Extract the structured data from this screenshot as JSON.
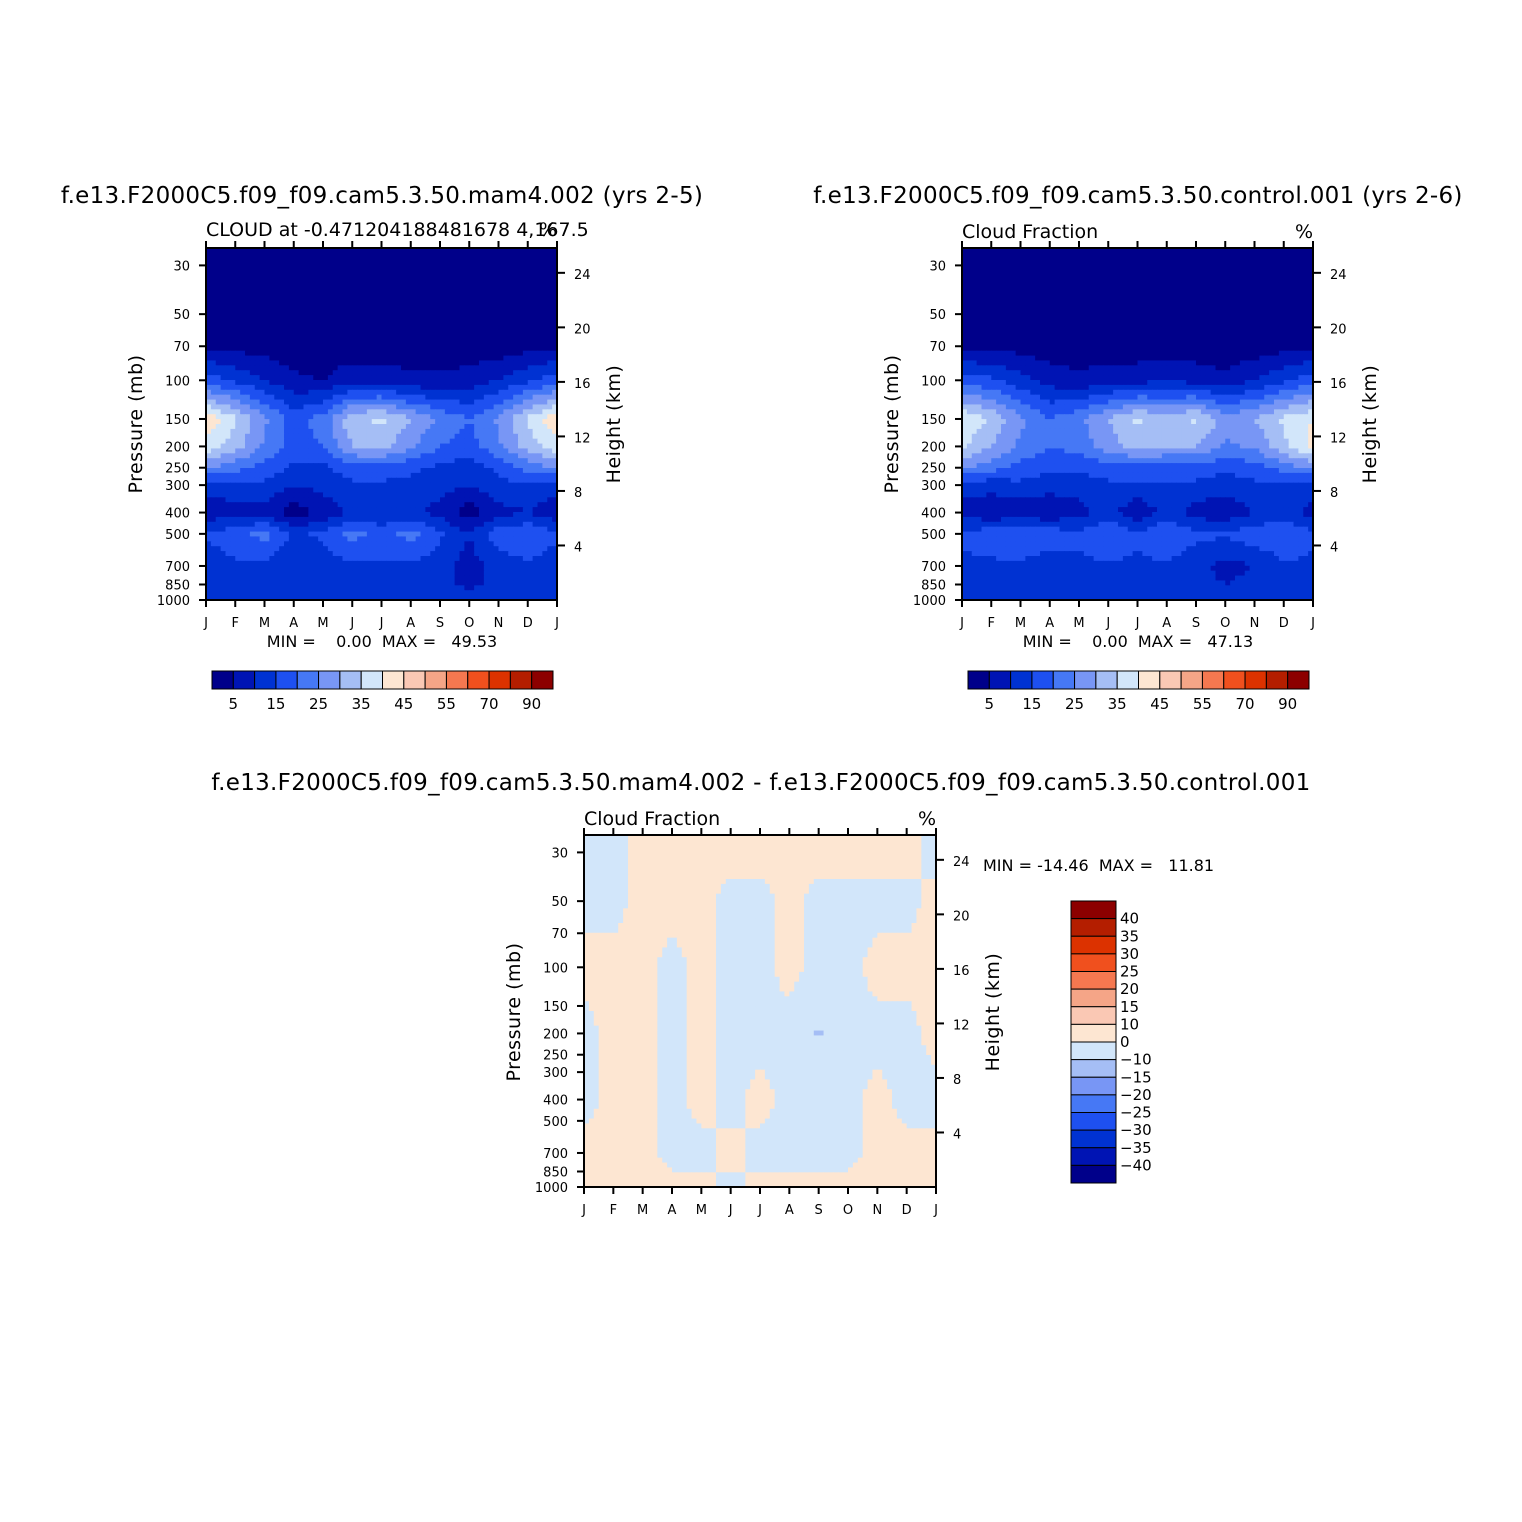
{
  "chart_data": [
    {
      "type": "heatmap",
      "title": "f.e13.F2000C5.f09_f09.cam5.3.50.mam4.002 (yrs 2-5)",
      "subtitle_left": "CLOUD at -0.471204188481678 4,167.5",
      "subtitle_right": "%",
      "xlabel": "",
      "ylabel": "Pressure (mb)",
      "ylabel_right": "Height (km)",
      "x_ticks": [
        "J",
        "F",
        "M",
        "A",
        "M",
        "J",
        "J",
        "A",
        "S",
        "O",
        "N",
        "D",
        "J"
      ],
      "y_ticks": [
        30,
        50,
        70,
        100,
        150,
        200,
        250,
        300,
        400,
        500,
        700,
        850,
        1000
      ],
      "y_right_ticks": [
        24,
        20,
        16,
        12,
        8,
        4
      ],
      "y_scale": "log",
      "ylim": [
        1000,
        25
      ],
      "min_max_text": "MIN =    0.00  MAX =   49.53",
      "colorbar_labels": [
        "5",
        "15",
        "25",
        "35",
        "45",
        "55",
        "70",
        "90"
      ],
      "colorbar_colors": [
        "#00008a",
        "#0014b4",
        "#0032d2",
        "#1e50f0",
        "#4678f5",
        "#7896f5",
        "#a5bef5",
        "#d2e6fa",
        "#fde6d2",
        "#fac8b4",
        "#f5a587",
        "#f57850",
        "#f0501e",
        "#dc3200",
        "#b41e00",
        "#8c0000"
      ],
      "bands": [
        {
          "y": 30,
          "values": [
            2,
            2,
            2,
            2,
            2,
            2,
            2,
            2,
            2,
            2,
            2,
            2,
            2
          ]
        },
        {
          "y": 70,
          "values": [
            4,
            3,
            3,
            2,
            2,
            2,
            2,
            2,
            2,
            2,
            2,
            3,
            4
          ]
        },
        {
          "y": 100,
          "values": [
            18,
            14,
            10,
            6,
            5,
            8,
            8,
            6,
            6,
            7,
            10,
            14,
            18
          ]
        },
        {
          "y": 150,
          "values": [
            44,
            36,
            26,
            18,
            22,
            34,
            36,
            30,
            24,
            20,
            26,
            36,
            44
          ]
        },
        {
          "y": 200,
          "values": [
            38,
            32,
            24,
            18,
            20,
            30,
            32,
            26,
            20,
            18,
            24,
            32,
            38
          ]
        },
        {
          "y": 250,
          "values": [
            26,
            22,
            18,
            14,
            14,
            18,
            18,
            16,
            14,
            12,
            16,
            22,
            26
          ]
        },
        {
          "y": 300,
          "values": [
            12,
            14,
            14,
            10,
            12,
            14,
            14,
            14,
            12,
            10,
            14,
            14,
            12
          ]
        },
        {
          "y": 400,
          "values": [
            6,
            8,
            8,
            2,
            6,
            11,
            10,
            11,
            8,
            2,
            8,
            10,
            6
          ]
        },
        {
          "y": 500,
          "values": [
            16,
            18,
            22,
            14,
            16,
            22,
            18,
            22,
            16,
            10,
            18,
            20,
            16
          ]
        },
        {
          "y": 700,
          "values": [
            12,
            14,
            14,
            10,
            12,
            14,
            14,
            14,
            12,
            8,
            12,
            14,
            12
          ]
        },
        {
          "y": 850,
          "values": [
            12,
            14,
            14,
            10,
            12,
            14,
            14,
            14,
            12,
            8,
            12,
            14,
            12
          ]
        },
        {
          "y": 1000,
          "values": [
            14,
            14,
            14,
            14,
            14,
            14,
            14,
            14,
            14,
            14,
            14,
            14,
            14
          ]
        }
      ]
    },
    {
      "type": "heatmap",
      "title": "f.e13.F2000C5.f09_f09.cam5.3.50.control.001 (yrs 2-6)",
      "subtitle_left": "Cloud Fraction",
      "subtitle_right": "%",
      "xlabel": "",
      "ylabel": "Pressure (mb)",
      "ylabel_right": "Height (km)",
      "x_ticks": [
        "J",
        "F",
        "M",
        "A",
        "M",
        "J",
        "J",
        "A",
        "S",
        "O",
        "N",
        "D",
        "J"
      ],
      "y_ticks": [
        30,
        50,
        70,
        100,
        150,
        200,
        250,
        300,
        400,
        500,
        700,
        850,
        1000
      ],
      "y_right_ticks": [
        24,
        20,
        16,
        12,
        8,
        4
      ],
      "y_scale": "log",
      "ylim": [
        1000,
        25
      ],
      "min_max_text": "MIN =    0.00  MAX =   47.13",
      "colorbar_labels": [
        "5",
        "15",
        "25",
        "35",
        "45",
        "55",
        "70",
        "90"
      ],
      "colorbar_colors": [
        "#00008a",
        "#0014b4",
        "#0032d2",
        "#1e50f0",
        "#4678f5",
        "#7896f5",
        "#a5bef5",
        "#d2e6fa",
        "#fde6d2",
        "#fac8b4",
        "#f5a587",
        "#f57850",
        "#f0501e",
        "#dc3200",
        "#b41e00",
        "#8c0000"
      ],
      "bands": [
        {
          "y": 30,
          "values": [
            2,
            2,
            2,
            2,
            2,
            2,
            2,
            2,
            2,
            2,
            2,
            2,
            2
          ]
        },
        {
          "y": 70,
          "values": [
            4,
            3,
            3,
            2,
            2,
            2,
            2,
            2,
            2,
            2,
            2,
            3,
            4
          ]
        },
        {
          "y": 100,
          "values": [
            18,
            16,
            12,
            8,
            6,
            8,
            8,
            10,
            8,
            6,
            10,
            14,
            18
          ]
        },
        {
          "y": 150,
          "values": [
            40,
            34,
            26,
            20,
            24,
            30,
            36,
            32,
            36,
            28,
            30,
            36,
            40
          ]
        },
        {
          "y": 200,
          "values": [
            36,
            30,
            24,
            20,
            22,
            28,
            32,
            30,
            30,
            24,
            26,
            34,
            42
          ]
        },
        {
          "y": 250,
          "values": [
            26,
            22,
            18,
            16,
            16,
            18,
            18,
            18,
            18,
            16,
            18,
            22,
            26
          ]
        },
        {
          "y": 300,
          "values": [
            12,
            12,
            14,
            12,
            12,
            14,
            14,
            14,
            14,
            12,
            14,
            14,
            12
          ]
        },
        {
          "y": 400,
          "values": [
            8,
            6,
            6,
            6,
            8,
            12,
            6,
            12,
            8,
            6,
            10,
            12,
            8
          ]
        },
        {
          "y": 500,
          "values": [
            16,
            18,
            20,
            18,
            16,
            20,
            16,
            20,
            16,
            16,
            18,
            20,
            16
          ]
        },
        {
          "y": 700,
          "values": [
            14,
            14,
            14,
            12,
            14,
            14,
            14,
            14,
            12,
            8,
            10,
            14,
            14
          ]
        },
        {
          "y": 850,
          "values": [
            14,
            14,
            14,
            12,
            14,
            14,
            14,
            14,
            12,
            10,
            12,
            14,
            14
          ]
        },
        {
          "y": 1000,
          "values": [
            14,
            14,
            14,
            14,
            14,
            14,
            14,
            14,
            14,
            14,
            14,
            14,
            14
          ]
        }
      ]
    },
    {
      "type": "heatmap",
      "title": "f.e13.F2000C5.f09_f09.cam5.3.50.mam4.002 - f.e13.F2000C5.f09_f09.cam5.3.50.control.001",
      "subtitle_left": "Cloud Fraction",
      "subtitle_right": "%",
      "xlabel": "",
      "ylabel": "Pressure (mb)",
      "ylabel_right": "Height (km)",
      "x_ticks": [
        "J",
        "F",
        "M",
        "A",
        "M",
        "J",
        "J",
        "A",
        "S",
        "O",
        "N",
        "D",
        "J"
      ],
      "y_ticks": [
        30,
        50,
        70,
        100,
        150,
        200,
        250,
        300,
        400,
        500,
        700,
        850,
        1000
      ],
      "y_right_ticks": [
        24,
        20,
        16,
        12,
        8,
        4
      ],
      "y_scale": "log",
      "ylim": [
        1000,
        25
      ],
      "min_max_text": "MIN = -14.46  MAX =   11.81",
      "colorbar_labels": [
        "40",
        "35",
        "30",
        "25",
        "20",
        "15",
        "10",
        "0",
        "-10",
        "-15",
        "-20",
        "-25",
        "-30",
        "-35",
        "-40"
      ],
      "colorbar_colors": [
        "#8c0000",
        "#b41e00",
        "#dc3200",
        "#f0501e",
        "#f57850",
        "#f5a587",
        "#fac8b4",
        "#fde6d2",
        "#d2e6fa",
        "#a5bef5",
        "#7896f5",
        "#4678f5",
        "#1e50f0",
        "#0032d2",
        "#0014b4",
        "#00008a"
      ],
      "bands": [
        {
          "y": 30,
          "values": [
            -2,
            -2,
            2,
            2,
            2,
            2,
            2,
            2,
            2,
            2,
            2,
            2,
            -2
          ]
        },
        {
          "y": 50,
          "values": [
            -2,
            -2,
            2,
            2,
            2,
            -2,
            -2,
            2,
            -2,
            -2,
            -2,
            -2,
            2
          ]
        },
        {
          "y": 100,
          "values": [
            2,
            2,
            2,
            -2,
            2,
            -2,
            -2,
            2,
            -2,
            -2,
            2,
            2,
            2
          ]
        },
        {
          "y": 200,
          "values": [
            -2,
            2,
            2,
            -2,
            2,
            -2,
            -2,
            -2,
            -11,
            -2,
            -2,
            -2,
            2
          ]
        },
        {
          "y": 400,
          "values": [
            -2,
            2,
            2,
            -2,
            2,
            -2,
            2,
            -2,
            -2,
            -2,
            2,
            -2,
            -2
          ]
        },
        {
          "y": 700,
          "values": [
            2,
            2,
            2,
            -2,
            -2,
            2,
            -2,
            -2,
            -2,
            -2,
            2,
            2,
            2
          ]
        },
        {
          "y": 1000,
          "values": [
            2,
            2,
            2,
            2,
            2,
            -2,
            2,
            2,
            2,
            2,
            2,
            2,
            2
          ]
        }
      ]
    }
  ]
}
